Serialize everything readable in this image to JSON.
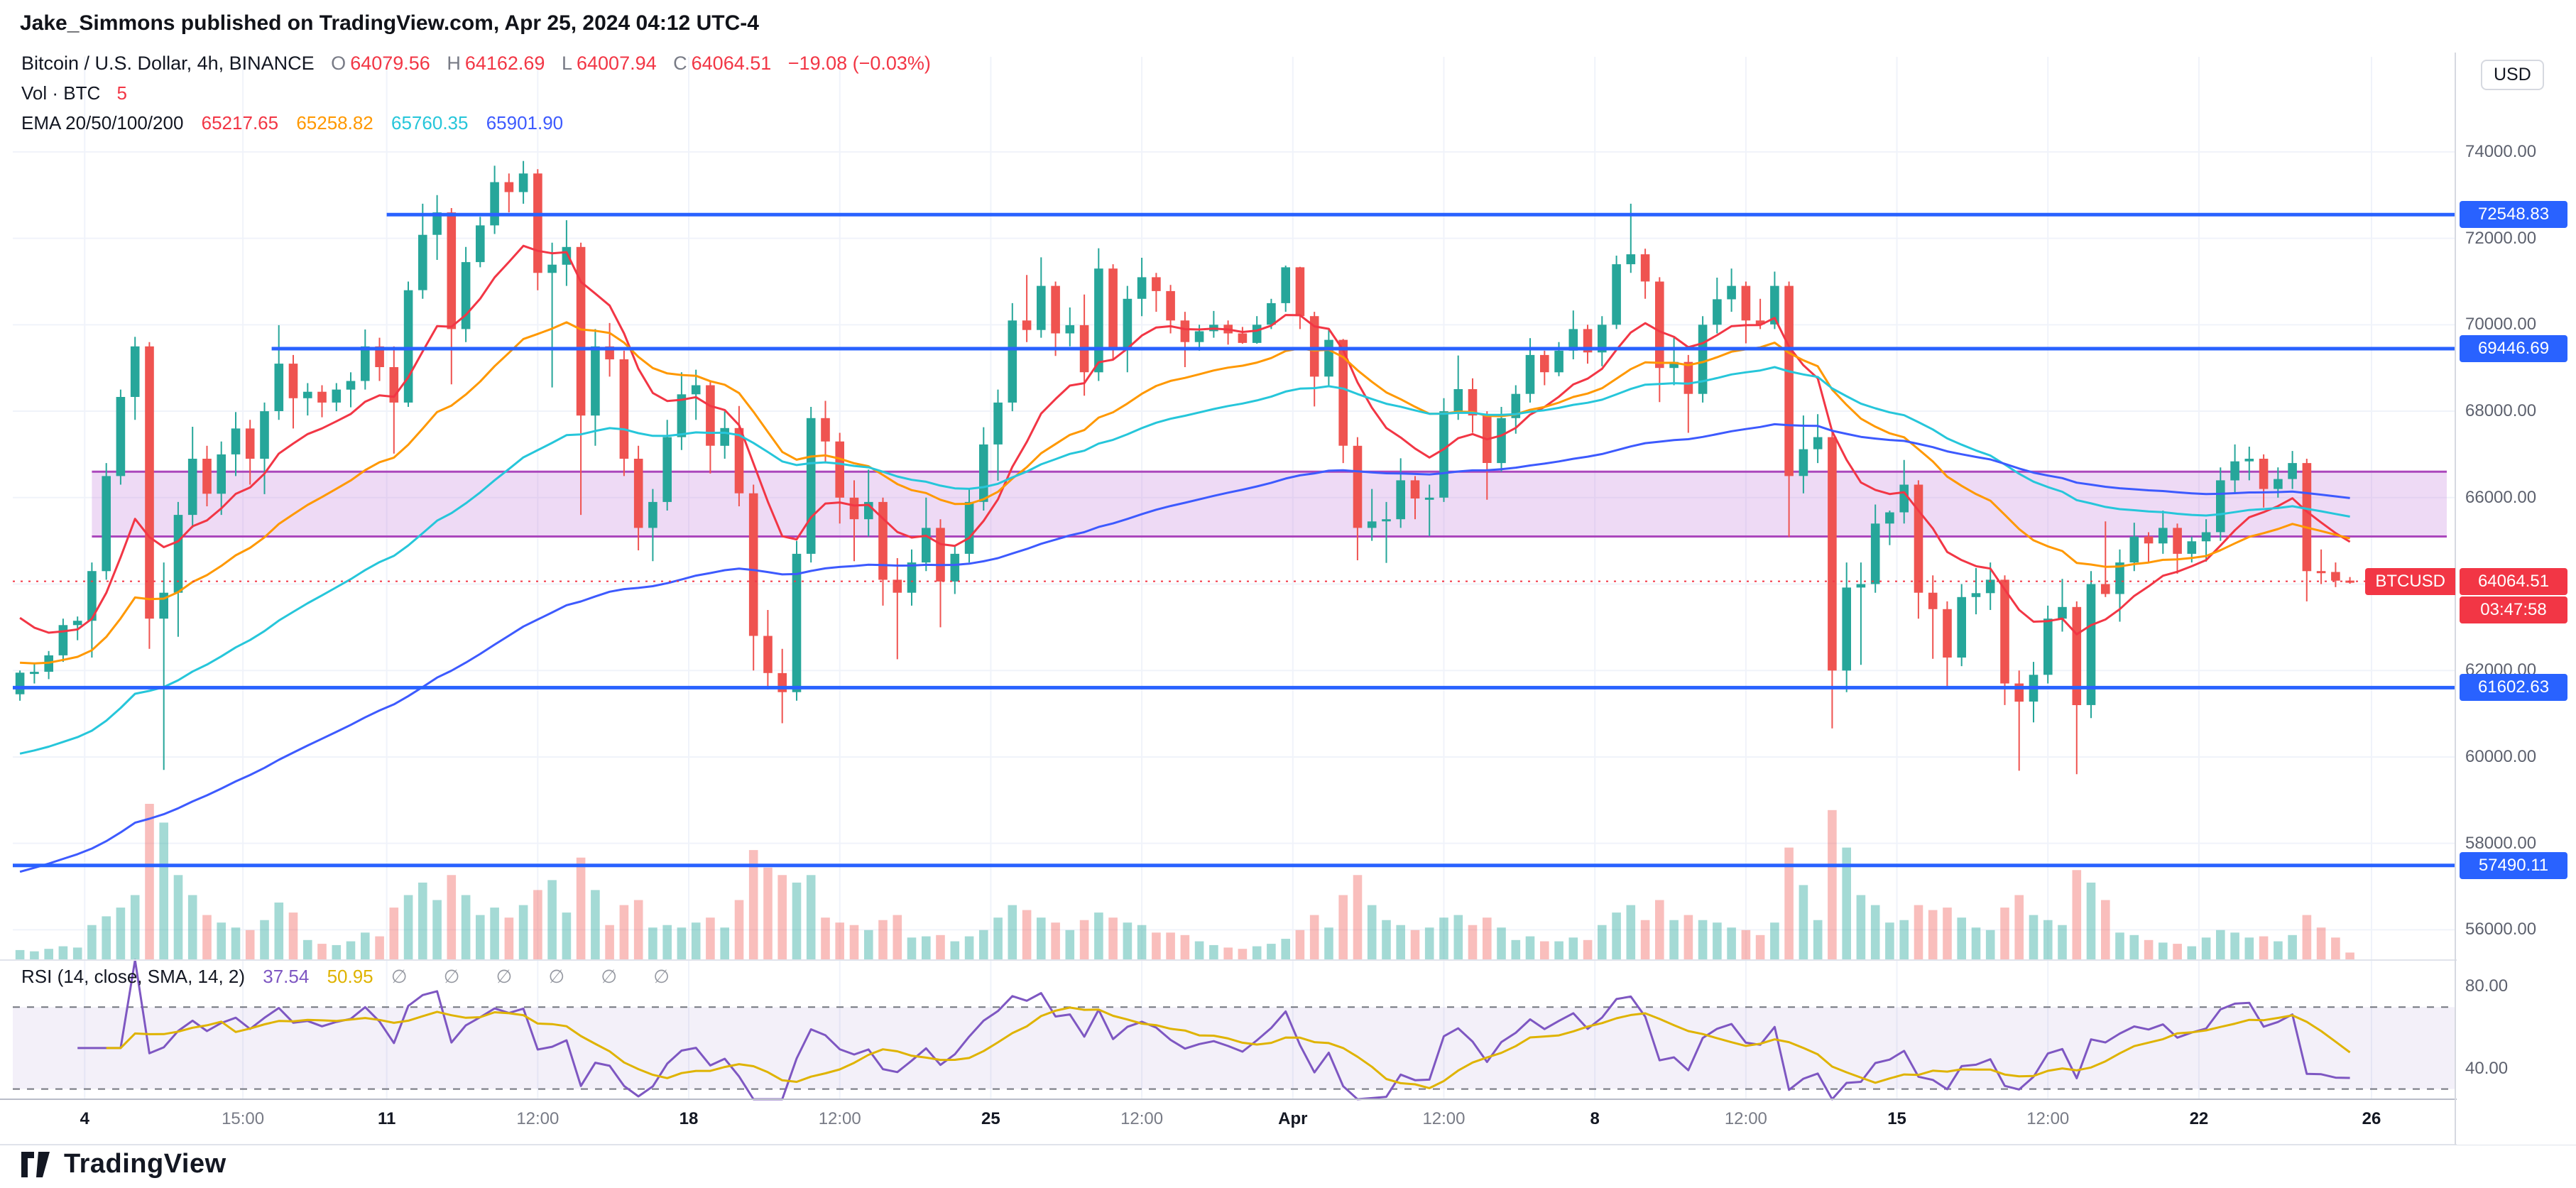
{
  "header": {
    "published_line": "Jake_Simmons published on TradingView.com, Apr 25, 2024 04:12 UTC-4"
  },
  "footer": {
    "brand": "TradingView"
  },
  "legend": {
    "title": "Bitcoin / U.S. Dollar, 4h, BINANCE",
    "ohlc": {
      "o_label": "O",
      "o": "64079.56",
      "h_label": "H",
      "h": "64162.69",
      "l_label": "L",
      "l": "64007.94",
      "c_label": "C",
      "c": "64064.51",
      "change": "−19.08 (−0.03%)"
    },
    "volume": {
      "label": "Vol · BTC",
      "value": "5"
    },
    "ema_label": "EMA 20/50/100/200"
  },
  "rsi_legend": {
    "label": "RSI (14, close, SMA, 14, 2)",
    "rsi": "37.54",
    "sma": "50.95",
    "empties": [
      "∅",
      "∅",
      "∅",
      "∅",
      "∅",
      "∅"
    ]
  },
  "price_axis": {
    "unit": "USD",
    "ticks": [
      74000,
      72000,
      70000,
      68000,
      66000,
      64000,
      62000,
      60000,
      58000,
      56000
    ]
  },
  "chart_data": {
    "type": "candlestick",
    "title": "Bitcoin / U.S. Dollar, 4h, BINANCE",
    "symbol": "BTCUSD",
    "exchange": "BINANCE",
    "interval": "4h",
    "x_range": "Mar 2 - Apr 26, 2024",
    "y_range": [
      55300,
      76200
    ],
    "grid": true,
    "candle_colors": {
      "up": "#26a69a",
      "down": "#ef5350"
    },
    "volume_colors": {
      "up": "rgba(38,166,154,0.42)",
      "down": "rgba(239,83,80,0.38)"
    },
    "level_color": "#2962ff",
    "levels": [
      {
        "price": 72548.83,
        "start_idx": 26
      },
      {
        "price": 69446.69,
        "start_idx": 18
      },
      {
        "price": 61602.63,
        "start_idx": 0
      },
      {
        "price": 57490.11,
        "start_idx": 0
      }
    ],
    "zone": {
      "top": 66600,
      "bottom": 65100,
      "start_idx": 5.5,
      "fill": "rgba(187,107,217,0.25)",
      "border": "#ab47bc"
    },
    "last_price": {
      "value": 64064.51,
      "flag": "BTCUSD",
      "countdown": "03:47:58",
      "color": "#f23645"
    },
    "emas": {
      "periods": [
        20,
        50,
        100,
        200
      ],
      "colors": [
        "#f23645",
        "#ff9800",
        "#26c6da",
        "#3d5afe"
      ],
      "seeds": [
        63500,
        62200,
        60000,
        57250
      ],
      "legend_values": [
        65217.65,
        65258.82,
        65760.35,
        65901.9
      ]
    },
    "rsi": {
      "period": 14,
      "value": 37.54,
      "sma": 50.95,
      "upper": 70,
      "lower": 30,
      "line_color": "#7e57c2",
      "sma_color": "#dfb300",
      "band_fill": "rgba(126,87,194,0.09)",
      "axis_ticks": [
        80,
        40
      ]
    },
    "time_labels": [
      {
        "t": "4",
        "i": 5,
        "b": 1
      },
      {
        "t": "15:00",
        "i": 16,
        "b": 0
      },
      {
        "t": "11",
        "i": 26,
        "b": 1
      },
      {
        "t": "12:00",
        "i": 36.5,
        "b": 0
      },
      {
        "t": "18",
        "i": 47,
        "b": 1
      },
      {
        "t": "12:00",
        "i": 57.5,
        "b": 0
      },
      {
        "t": "25",
        "i": 68,
        "b": 1
      },
      {
        "t": "12:00",
        "i": 78.5,
        "b": 0
      },
      {
        "t": "Apr",
        "i": 89,
        "b": 1
      },
      {
        "t": "12:00",
        "i": 99.5,
        "b": 0
      },
      {
        "t": "8",
        "i": 110,
        "b": 1
      },
      {
        "t": "12:00",
        "i": 120.5,
        "b": 0
      },
      {
        "t": "15",
        "i": 131,
        "b": 1
      },
      {
        "t": "12:00",
        "i": 141.5,
        "b": 0
      },
      {
        "t": "22",
        "i": 152,
        "b": 1
      },
      {
        "t": "26",
        "i": 164,
        "b": 1
      }
    ],
    "candles": [
      [
        61450,
        62000,
        61300,
        61950,
        800
      ],
      [
        61950,
        62150,
        61700,
        61970,
        700
      ],
      [
        61970,
        62450,
        61800,
        62350,
        900
      ],
      [
        62350,
        63200,
        62200,
        63050,
        1100
      ],
      [
        63050,
        63250,
        62700,
        63150,
        1000
      ],
      [
        63150,
        64500,
        62300,
        64300,
        2800
      ],
      [
        64300,
        66800,
        64100,
        66500,
        3500
      ],
      [
        66500,
        68500,
        66300,
        68330,
        4200
      ],
      [
        68330,
        69720,
        67800,
        69500,
        5200
      ],
      [
        69500,
        69600,
        62500,
        63200,
        12500
      ],
      [
        63200,
        64500,
        59700,
        63800,
        11000
      ],
      [
        63800,
        65900,
        62780,
        65600,
        6800
      ],
      [
        65600,
        67640,
        65300,
        66900,
        5200
      ],
      [
        66900,
        67200,
        65800,
        66090,
        3600
      ],
      [
        66090,
        67300,
        65600,
        67000,
        3000
      ],
      [
        67000,
        67980,
        66500,
        67600,
        2600
      ],
      [
        67600,
        67800,
        66300,
        66900,
        2400
      ],
      [
        66900,
        68200,
        66080,
        68000,
        3200
      ],
      [
        68000,
        69990,
        67800,
        69100,
        4600
      ],
      [
        69100,
        69300,
        67600,
        68300,
        3800
      ],
      [
        68300,
        68650,
        67900,
        68450,
        1600
      ],
      [
        68450,
        68600,
        67860,
        68200,
        1300
      ],
      [
        68200,
        68650,
        68000,
        68500,
        1200
      ],
      [
        68500,
        68900,
        68090,
        68700,
        1500
      ],
      [
        68700,
        69890,
        68500,
        69500,
        2200
      ],
      [
        69500,
        69700,
        68700,
        69020,
        1900
      ],
      [
        69020,
        69500,
        67020,
        68200,
        4200
      ],
      [
        68200,
        71000,
        68100,
        70800,
        5200
      ],
      [
        70800,
        72800,
        70600,
        72080,
        6200
      ],
      [
        72080,
        73000,
        71500,
        72600,
        4800
      ],
      [
        72600,
        72700,
        68620,
        69900,
        6800
      ],
      [
        69900,
        71800,
        69600,
        71450,
        5200
      ],
      [
        71450,
        72500,
        71330,
        72300,
        3600
      ],
      [
        72300,
        73680,
        72100,
        73300,
        4200
      ],
      [
        73300,
        73500,
        72600,
        73070,
        3400
      ],
      [
        73070,
        73790,
        72800,
        73500,
        4400
      ],
      [
        73500,
        73600,
        70800,
        71200,
        5600
      ],
      [
        71200,
        71900,
        68550,
        71390,
        6400
      ],
      [
        71390,
        72420,
        70900,
        71800,
        3800
      ],
      [
        71800,
        71900,
        65600,
        67900,
        8200
      ],
      [
        67900,
        69900,
        67200,
        69500,
        5600
      ],
      [
        69500,
        70040,
        68800,
        69200,
        2800
      ],
      [
        69200,
        69400,
        66500,
        66900,
        4400
      ],
      [
        66900,
        67200,
        64780,
        65300,
        4800
      ],
      [
        65300,
        66200,
        64530,
        65900,
        2600
      ],
      [
        65900,
        67800,
        65700,
        67400,
        2800
      ],
      [
        67400,
        68900,
        67100,
        68390,
        2600
      ],
      [
        68390,
        68960,
        67800,
        68600,
        3000
      ],
      [
        68600,
        68700,
        66560,
        67200,
        3400
      ],
      [
        67200,
        68000,
        66900,
        67610,
        2600
      ],
      [
        67610,
        68120,
        65800,
        66100,
        4800
      ],
      [
        66100,
        66300,
        62000,
        62800,
        8800
      ],
      [
        62800,
        63400,
        61560,
        61940,
        7400
      ],
      [
        61940,
        62500,
        60780,
        61500,
        6800
      ],
      [
        61500,
        65000,
        61300,
        64700,
        6200
      ],
      [
        64700,
        68100,
        64500,
        67840,
        6800
      ],
      [
        67840,
        68240,
        66800,
        67300,
        3400
      ],
      [
        67300,
        67500,
        65400,
        66000,
        3000
      ],
      [
        66000,
        66400,
        64530,
        65500,
        2800
      ],
      [
        65500,
        66650,
        65100,
        65900,
        2400
      ],
      [
        65900,
        66000,
        63500,
        64100,
        3200
      ],
      [
        64100,
        64600,
        62260,
        63800,
        3600
      ],
      [
        63800,
        64800,
        63500,
        64500,
        1800
      ],
      [
        64500,
        66000,
        64300,
        65300,
        1900
      ],
      [
        65300,
        65500,
        63000,
        64060,
        2000
      ],
      [
        64060,
        64900,
        63770,
        64700,
        1500
      ],
      [
        64700,
        66200,
        64500,
        65900,
        1900
      ],
      [
        65900,
        67630,
        65700,
        67230,
        2400
      ],
      [
        67230,
        68500,
        66390,
        68200,
        3400
      ],
      [
        68200,
        70500,
        68000,
        70100,
        4400
      ],
      [
        70100,
        71150,
        69600,
        69880,
        4000
      ],
      [
        69880,
        71560,
        69700,
        70900,
        3400
      ],
      [
        70900,
        71000,
        69280,
        69800,
        3000
      ],
      [
        69800,
        70400,
        69500,
        69990,
        2400
      ],
      [
        69990,
        70700,
        68360,
        68900,
        3200
      ],
      [
        68900,
        71770,
        68700,
        71300,
        3800
      ],
      [
        71300,
        71400,
        69200,
        69470,
        3400
      ],
      [
        69470,
        70900,
        68900,
        70600,
        3000
      ],
      [
        70600,
        71550,
        70200,
        71100,
        2800
      ],
      [
        71100,
        71200,
        70300,
        70780,
        2200
      ],
      [
        70780,
        70920,
        69800,
        70100,
        2200
      ],
      [
        70100,
        70300,
        69020,
        69600,
        2000
      ],
      [
        69600,
        70000,
        69400,
        69850,
        1500
      ],
      [
        69850,
        70320,
        69700,
        70000,
        1200
      ],
      [
        70000,
        70100,
        69540,
        69800,
        1000
      ],
      [
        69800,
        69950,
        69560,
        69580,
        900
      ],
      [
        69580,
        70200,
        69560,
        70000,
        1100
      ],
      [
        70000,
        70600,
        69900,
        70500,
        1300
      ],
      [
        70500,
        71370,
        70300,
        71330,
        1700
      ],
      [
        71330,
        71340,
        69900,
        70200,
        2400
      ],
      [
        70200,
        70300,
        68110,
        68800,
        3600
      ],
      [
        68800,
        69900,
        68600,
        69650,
        2600
      ],
      [
        69650,
        69670,
        66800,
        67200,
        5200
      ],
      [
        67200,
        67400,
        64550,
        65300,
        6800
      ],
      [
        65300,
        66200,
        65000,
        65450,
        4400
      ],
      [
        65450,
        65900,
        64490,
        65500,
        3200
      ],
      [
        65500,
        66910,
        65300,
        66400,
        2800
      ],
      [
        66400,
        66500,
        65500,
        65980,
        2400
      ],
      [
        65980,
        66300,
        65110,
        66000,
        2600
      ],
      [
        66000,
        68300,
        65900,
        68000,
        3400
      ],
      [
        68000,
        69290,
        67800,
        68510,
        3600
      ],
      [
        68510,
        68760,
        67500,
        67900,
        2800
      ],
      [
        67900,
        68000,
        65950,
        66800,
        3400
      ],
      [
        66800,
        68100,
        66600,
        67840,
        2600
      ],
      [
        67840,
        68600,
        67480,
        68400,
        1600
      ],
      [
        68400,
        69690,
        68200,
        69300,
        1900
      ],
      [
        69300,
        69400,
        68600,
        68900,
        1500
      ],
      [
        68900,
        69600,
        68810,
        69400,
        1500
      ],
      [
        69400,
        70330,
        69200,
        69900,
        1800
      ],
      [
        69900,
        70000,
        69100,
        69360,
        1600
      ],
      [
        69360,
        70200,
        69040,
        70000,
        2800
      ],
      [
        70000,
        71600,
        69900,
        71400,
        3800
      ],
      [
        71400,
        72800,
        71200,
        71630,
        4400
      ],
      [
        71630,
        71760,
        70600,
        71000,
        3200
      ],
      [
        71000,
        71100,
        68210,
        69000,
        4800
      ],
      [
        69000,
        69700,
        68600,
        69140,
        3200
      ],
      [
        69140,
        69300,
        67500,
        68400,
        3600
      ],
      [
        68400,
        70200,
        68200,
        70000,
        3200
      ],
      [
        70000,
        71090,
        69800,
        70590,
        3000
      ],
      [
        70590,
        71300,
        70300,
        70900,
        2600
      ],
      [
        70900,
        71000,
        69570,
        70100,
        2400
      ],
      [
        70100,
        70600,
        69900,
        70010,
        2000
      ],
      [
        70010,
        71230,
        69900,
        70900,
        3000
      ],
      [
        70900,
        71000,
        65090,
        66500,
        9000
      ],
      [
        66500,
        67900,
        66100,
        67120,
        6000
      ],
      [
        67120,
        67930,
        66800,
        67400,
        3200
      ],
      [
        67400,
        67500,
        60660,
        62000,
        12000
      ],
      [
        62000,
        64500,
        61500,
        63920,
        9000
      ],
      [
        63920,
        64500,
        62130,
        64000,
        5200
      ],
      [
        64000,
        65840,
        63800,
        65400,
        4400
      ],
      [
        65400,
        65700,
        64900,
        65660,
        3000
      ],
      [
        65660,
        66870,
        65400,
        66300,
        3200
      ],
      [
        66300,
        66400,
        63200,
        63800,
        4400
      ],
      [
        63800,
        64200,
        62270,
        63420,
        4000
      ],
      [
        63420,
        63600,
        61600,
        62300,
        4200
      ],
      [
        62300,
        64000,
        62100,
        63700,
        3400
      ],
      [
        63700,
        64370,
        63300,
        63790,
        2600
      ],
      [
        63790,
        64500,
        63400,
        64100,
        2400
      ],
      [
        64100,
        64200,
        61200,
        61700,
        4200
      ],
      [
        61700,
        62000,
        59680,
        61280,
        5200
      ],
      [
        61280,
        62200,
        60800,
        61900,
        3600
      ],
      [
        61900,
        63500,
        61700,
        63200,
        3200
      ],
      [
        63200,
        64120,
        62900,
        63470,
        2800
      ],
      [
        63470,
        63600,
        59600,
        61200,
        7200
      ],
      [
        61200,
        64300,
        60900,
        64000,
        6200
      ],
      [
        64000,
        65450,
        63700,
        63770,
        4800
      ],
      [
        63770,
        64800,
        63130,
        64500,
        2200
      ],
      [
        64500,
        65420,
        64300,
        65100,
        2000
      ],
      [
        65100,
        65200,
        64500,
        64940,
        1600
      ],
      [
        64940,
        65700,
        64700,
        65300,
        1400
      ],
      [
        65300,
        65400,
        64240,
        64700,
        1300
      ],
      [
        64700,
        65100,
        64500,
        64990,
        1100
      ],
      [
        64990,
        65500,
        64520,
        65200,
        1800
      ],
      [
        65200,
        66700,
        65000,
        66400,
        2400
      ],
      [
        66400,
        67230,
        66100,
        66840,
        2200
      ],
      [
        66840,
        67180,
        66400,
        66900,
        1800
      ],
      [
        66900,
        67000,
        65770,
        66200,
        1900
      ],
      [
        66200,
        66700,
        66000,
        66430,
        1500
      ],
      [
        66430,
        67080,
        66200,
        66800,
        2000
      ],
      [
        66800,
        66900,
        63600,
        64300,
        3600
      ],
      [
        64300,
        64800,
        64000,
        64280,
        2600
      ],
      [
        64280,
        64500,
        63930,
        64080,
        1800
      ],
      [
        64080,
        64163,
        64008,
        64064.51,
        600
      ]
    ]
  }
}
